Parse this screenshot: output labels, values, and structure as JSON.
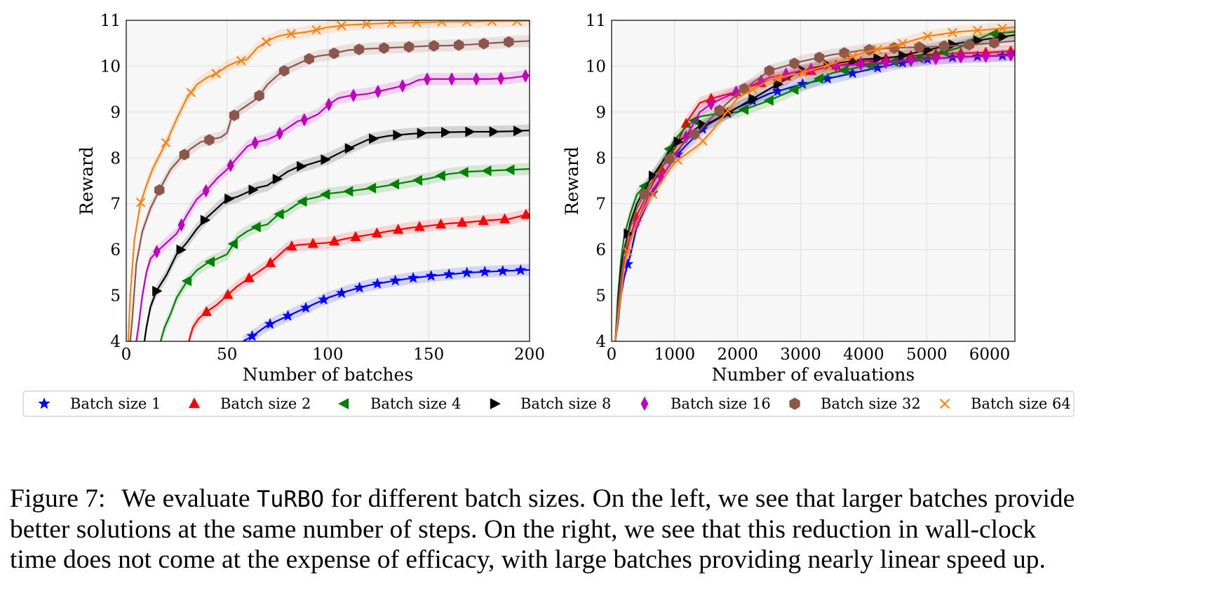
{
  "colors": {
    "batch1": "#0000ff",
    "batch2": "#ff0000",
    "batch4": "#008000",
    "batch8": "#000000",
    "batch16": "#bf00bf",
    "batch32": "#8c564b",
    "batch64": "#ff7f0e",
    "plot_bg": "#f7f7f7",
    "grid": "#dcdcdc"
  },
  "legend": {
    "entries": [
      {
        "label": "Batch size 1",
        "marker": "star-icon",
        "color": "#0000ff"
      },
      {
        "label": "Batch size 2",
        "marker": "triangle-up-icon",
        "color": "#ff0000"
      },
      {
        "label": "Batch size 4",
        "marker": "triangle-left-icon",
        "color": "#008000"
      },
      {
        "label": "Batch size 8",
        "marker": "triangle-right-icon",
        "color": "#000000"
      },
      {
        "label": "Batch size 16",
        "marker": "thin-diamond-icon",
        "color": "#bf00bf"
      },
      {
        "label": "Batch size 32",
        "marker": "hexagon-icon",
        "color": "#8c564b"
      },
      {
        "label": "Batch size 64",
        "marker": "x-icon",
        "color": "#ff7f0e"
      }
    ],
    "placement": "below plots, spanning both"
  },
  "caption": {
    "prefix": "Figure 7:",
    "code": "TuRBO",
    "line1_a": "We evaluate",
    "line1_b": "for different batch sizes. On the left, we see that larger batches provide",
    "line2": "better solutions at the same number of steps. On the right, we see that this reduction in wall-clock",
    "line3": "time does not come at the expense of efficacy, with large batches providing nearly linear speed up."
  },
  "chart_data": [
    {
      "type": "line",
      "xlabel": "Number of batches",
      "ylabel": "Reward",
      "xlim": [
        0,
        200
      ],
      "ylim": [
        4,
        11
      ],
      "xticks": [
        0,
        50,
        100,
        150,
        200
      ],
      "yticks": [
        4,
        5,
        6,
        7,
        8,
        9,
        10,
        11
      ],
      "grid": true,
      "confidence_band": true,
      "series": [
        {
          "name": "Batch size 1",
          "x": [
            58,
            62,
            70,
            80,
            90,
            100,
            110,
            120,
            130,
            140,
            150,
            160,
            170,
            180,
            190,
            200
          ],
          "y": [
            4.0,
            4.1,
            4.35,
            4.55,
            4.75,
            4.95,
            5.1,
            5.22,
            5.3,
            5.37,
            5.42,
            5.46,
            5.5,
            5.52,
            5.54,
            5.56
          ]
        },
        {
          "name": "Batch size 2",
          "x": [
            31,
            33,
            36,
            40,
            45,
            50,
            55,
            60,
            65,
            70,
            75,
            80,
            85,
            90,
            100,
            110,
            120,
            130,
            140,
            150,
            160,
            170,
            180,
            190,
            200
          ],
          "y": [
            4.0,
            4.3,
            4.5,
            4.65,
            4.8,
            5.0,
            5.2,
            5.35,
            5.5,
            5.65,
            5.85,
            6.05,
            6.1,
            6.12,
            6.15,
            6.25,
            6.32,
            6.4,
            6.47,
            6.52,
            6.57,
            6.6,
            6.64,
            6.67,
            6.78
          ]
        },
        {
          "name": "Batch size 4",
          "x": [
            17,
            19,
            22,
            25,
            30,
            35,
            40,
            45,
            50,
            55,
            60,
            65,
            70,
            75,
            80,
            85,
            90,
            95,
            100,
            110,
            120,
            130,
            140,
            150,
            160,
            170,
            180,
            190,
            200
          ],
          "y": [
            4.0,
            4.3,
            4.6,
            4.95,
            5.3,
            5.55,
            5.7,
            5.8,
            5.9,
            6.25,
            6.4,
            6.5,
            6.55,
            6.75,
            6.85,
            7.0,
            7.1,
            7.15,
            7.22,
            7.27,
            7.33,
            7.4,
            7.48,
            7.55,
            7.65,
            7.7,
            7.72,
            7.74,
            7.76
          ]
        },
        {
          "name": "Batch size 8",
          "x": [
            9,
            10,
            12,
            15,
            20,
            25,
            30,
            35,
            40,
            45,
            50,
            55,
            60,
            65,
            70,
            75,
            80,
            85,
            90,
            95,
            100,
            110,
            120,
            130,
            140,
            150,
            160,
            170,
            180,
            190,
            200
          ],
          "y": [
            4.0,
            4.3,
            4.75,
            5.1,
            5.45,
            5.9,
            6.15,
            6.45,
            6.7,
            6.9,
            7.1,
            7.15,
            7.25,
            7.35,
            7.4,
            7.55,
            7.7,
            7.8,
            7.85,
            7.92,
            7.98,
            8.2,
            8.4,
            8.48,
            8.52,
            8.55,
            8.56,
            8.57,
            8.57,
            8.58,
            8.6
          ]
        },
        {
          "name": "Batch size 16",
          "x": [
            5,
            6,
            8,
            10,
            12,
            15,
            20,
            25,
            30,
            35,
            40,
            45,
            50,
            55,
            60,
            65,
            70,
            75,
            80,
            85,
            90,
            95,
            100,
            105,
            110,
            120,
            130,
            140,
            145,
            150,
            160,
            170,
            180,
            190,
            200
          ],
          "y": [
            4.0,
            4.3,
            5.0,
            5.5,
            5.8,
            5.95,
            6.15,
            6.35,
            6.75,
            7.1,
            7.3,
            7.55,
            7.75,
            8.0,
            8.25,
            8.35,
            8.4,
            8.5,
            8.65,
            8.8,
            8.85,
            8.95,
            9.15,
            9.3,
            9.35,
            9.4,
            9.5,
            9.6,
            9.7,
            9.72,
            9.72,
            9.72,
            9.72,
            9.74,
            9.8
          ]
        },
        {
          "name": "Batch size 32",
          "x": [
            2,
            3,
            5,
            8,
            12,
            17,
            22,
            27,
            32,
            37,
            42,
            47,
            50,
            52,
            55,
            60,
            65,
            70,
            75,
            80,
            85,
            90,
            95,
            100,
            105,
            110,
            120,
            130,
            140,
            150,
            160,
            170,
            180,
            190,
            200
          ],
          "y": [
            4.0,
            4.5,
            5.7,
            6.4,
            6.9,
            7.35,
            7.75,
            8.0,
            8.2,
            8.35,
            8.4,
            8.45,
            8.55,
            8.85,
            9.0,
            9.15,
            9.3,
            9.6,
            9.8,
            9.95,
            10.05,
            10.15,
            10.22,
            10.25,
            10.3,
            10.35,
            10.38,
            10.4,
            10.42,
            10.44,
            10.45,
            10.47,
            10.5,
            10.53,
            10.55
          ]
        },
        {
          "name": "Batch size 64",
          "x": [
            1,
            2,
            4,
            7,
            10,
            13,
            17,
            21,
            25,
            30,
            35,
            40,
            45,
            50,
            55,
            60,
            65,
            70,
            75,
            80,
            85,
            90,
            95,
            100,
            110,
            120,
            130,
            140,
            150,
            160,
            170,
            180,
            190,
            200
          ],
          "y": [
            4.0,
            5.0,
            6.2,
            7.0,
            7.4,
            7.75,
            8.1,
            8.45,
            8.85,
            9.3,
            9.6,
            9.75,
            9.85,
            10.0,
            10.1,
            10.15,
            10.4,
            10.55,
            10.65,
            10.7,
            10.72,
            10.75,
            10.8,
            10.85,
            10.9,
            10.92,
            10.94,
            10.95,
            10.96,
            10.97,
            10.97,
            10.98,
            10.98,
            10.99
          ]
        }
      ]
    },
    {
      "type": "line",
      "xlabel": "Number of evaluations",
      "ylabel": "Reward",
      "xlim": [
        0,
        6400
      ],
      "ylim": [
        4,
        11
      ],
      "xticks": [
        0,
        1000,
        2000,
        3000,
        4000,
        5000,
        6000
      ],
      "yticks": [
        4,
        5,
        6,
        7,
        8,
        9,
        10,
        11
      ],
      "grid": true,
      "confidence_band": true,
      "series": [
        {
          "name": "Batch size 1",
          "x": [
            58,
            100,
            150,
            200,
            300,
            400,
            600,
            800,
            1000,
            1200,
            1500,
            2000,
            2500,
            3000,
            3500,
            4000,
            4500,
            5000,
            5500,
            6000,
            6400
          ],
          "y": [
            4.0,
            4.4,
            5.0,
            5.4,
            5.9,
            6.5,
            7.1,
            7.6,
            8.0,
            8.3,
            8.7,
            9.1,
            9.4,
            9.6,
            9.75,
            9.9,
            10.05,
            10.15,
            10.2,
            10.22,
            10.24
          ]
        },
        {
          "name": "Batch size 2",
          "x": [
            60,
            100,
            150,
            200,
            300,
            400,
            600,
            800,
            1000,
            1200,
            1400,
            1600,
            2000,
            2500,
            3000,
            3500,
            4000,
            4500,
            5000,
            5500,
            6000,
            6400
          ],
          "y": [
            4.0,
            4.6,
            5.3,
            5.8,
            6.3,
            6.75,
            7.3,
            7.8,
            8.2,
            8.8,
            9.2,
            9.3,
            9.45,
            9.7,
            9.85,
            10.0,
            10.1,
            10.2,
            10.25,
            10.28,
            10.3,
            10.33
          ]
        },
        {
          "name": "Batch size 4",
          "x": [
            60,
            100,
            150,
            200,
            300,
            400,
            600,
            800,
            1000,
            1200,
            1400,
            1600,
            2000,
            2500,
            3000,
            3500,
            4000,
            4500,
            5000,
            5500,
            6000,
            6400
          ],
          "y": [
            4.0,
            5.0,
            5.8,
            6.3,
            6.8,
            7.2,
            7.5,
            7.9,
            8.4,
            8.7,
            8.9,
            8.95,
            9.0,
            9.25,
            9.55,
            9.85,
            10.0,
            10.1,
            10.2,
            10.4,
            10.7,
            10.75
          ]
        },
        {
          "name": "Batch size 8",
          "x": [
            60,
            100,
            150,
            200,
            300,
            400,
            600,
            800,
            1000,
            1200,
            1400,
            1600,
            2000,
            2500,
            3000,
            3500,
            4000,
            4500,
            5000,
            5500,
            6000,
            6400
          ],
          "y": [
            4.0,
            4.8,
            5.6,
            6.0,
            6.6,
            7.0,
            7.5,
            7.9,
            8.3,
            8.5,
            8.7,
            8.8,
            9.1,
            9.5,
            9.9,
            10.05,
            10.15,
            10.2,
            10.35,
            10.5,
            10.6,
            10.68
          ]
        },
        {
          "name": "Batch size 16",
          "x": [
            60,
            100,
            150,
            200,
            300,
            400,
            600,
            800,
            1000,
            1200,
            1400,
            1600,
            2000,
            2500,
            3000,
            3500,
            4000,
            4500,
            5000,
            5500,
            6000,
            6400
          ],
          "y": [
            4.0,
            4.6,
            5.3,
            5.8,
            6.2,
            6.6,
            7.2,
            7.6,
            8.0,
            8.5,
            9.0,
            9.2,
            9.45,
            9.75,
            9.9,
            10.0,
            10.05,
            10.1,
            10.15,
            10.2,
            10.22,
            10.25
          ]
        },
        {
          "name": "Batch size 32",
          "x": [
            60,
            100,
            150,
            200,
            300,
            400,
            600,
            800,
            1000,
            1200,
            1400,
            1600,
            2000,
            2500,
            3000,
            3500,
            4000,
            4500,
            5000,
            5500,
            6000,
            6400
          ],
          "y": [
            4.0,
            4.7,
            5.4,
            5.9,
            6.5,
            6.9,
            7.4,
            7.8,
            8.1,
            8.4,
            8.6,
            8.9,
            9.4,
            9.9,
            10.1,
            10.25,
            10.35,
            10.4,
            10.42,
            10.45,
            10.5,
            10.55
          ]
        },
        {
          "name": "Batch size 64",
          "x": [
            60,
            100,
            150,
            200,
            300,
            400,
            600,
            800,
            1000,
            1200,
            1400,
            1600,
            2000,
            2500,
            3000,
            3500,
            4000,
            4500,
            5000,
            5500,
            6000,
            6400
          ],
          "y": [
            4.0,
            4.5,
            5.0,
            5.6,
            6.2,
            6.6,
            7.1,
            7.5,
            7.9,
            8.1,
            8.3,
            8.6,
            9.3,
            9.7,
            9.85,
            10.05,
            10.3,
            10.45,
            10.65,
            10.75,
            10.8,
            10.85
          ]
        }
      ]
    }
  ]
}
